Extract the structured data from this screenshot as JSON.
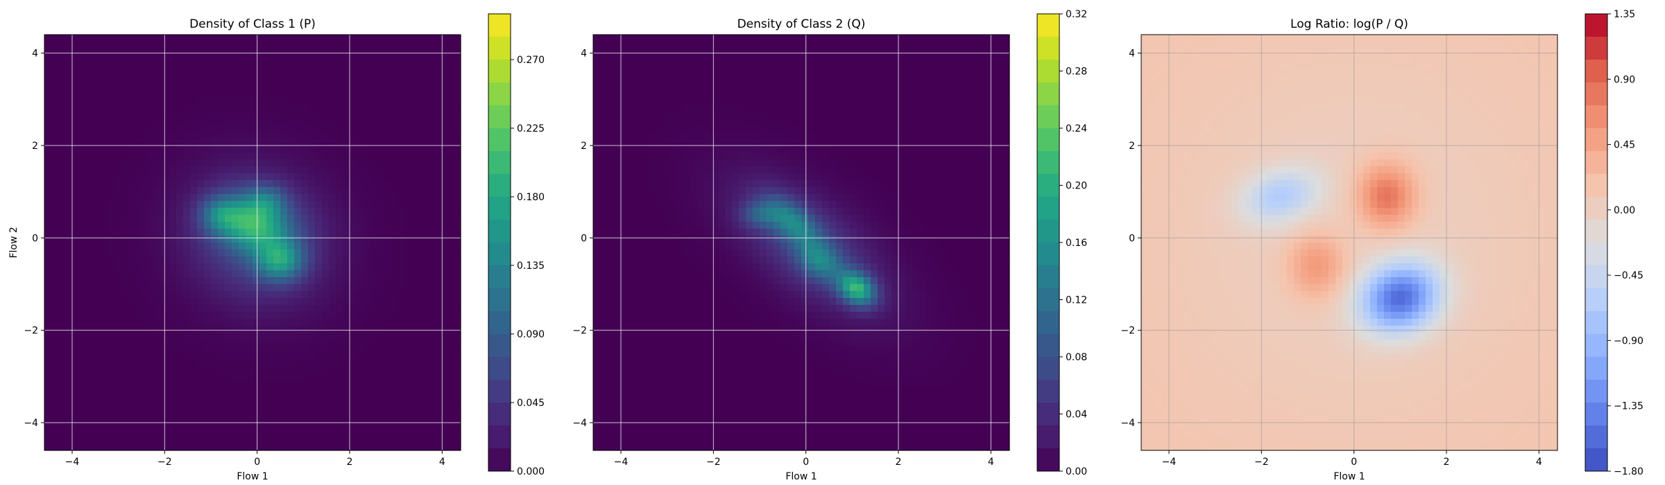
{
  "chart_data": [
    {
      "type": "heatmap",
      "title": "Density of Class 1 (P)",
      "xlabel": "Flow 1",
      "ylabel": "Flow 2",
      "xlim": [
        -4.6,
        4.4
      ],
      "ylim": [
        -4.6,
        4.4
      ],
      "xticks": [
        -4,
        -2,
        0,
        2,
        4
      ],
      "yticks": [
        -4,
        -2,
        0,
        2,
        4
      ],
      "grid": true,
      "colormap": "viridis",
      "colorbar": {
        "min": 0.0,
        "max": 0.3,
        "ticks": [
          "0.000",
          "0.045",
          "0.090",
          "0.135",
          "0.180",
          "0.225",
          "0.270"
        ]
      },
      "blobs": [
        {
          "x": 0.0,
          "y": 0.0,
          "sx": 1.05,
          "sy": 0.95,
          "rot": -0.55,
          "amp": 0.07
        },
        {
          "x": -0.1,
          "y": 0.3,
          "sx": 0.55,
          "sy": 0.4,
          "rot": -0.3,
          "amp": 0.14
        },
        {
          "x": 0.5,
          "y": -0.5,
          "sx": 0.35,
          "sy": 0.3,
          "rot": 0.0,
          "amp": 0.12
        },
        {
          "x": -0.8,
          "y": 0.5,
          "sx": 0.3,
          "sy": 0.25,
          "rot": 0.0,
          "amp": 0.07
        },
        {
          "x": 0.2,
          "y": 0.8,
          "sx": 0.3,
          "sy": 0.25,
          "rot": 0.0,
          "amp": 0.06
        }
      ]
    },
    {
      "type": "heatmap",
      "title": "Density of Class 2 (Q)",
      "xlabel": "Flow 1",
      "ylabel": "",
      "xlim": [
        -4.6,
        4.4
      ],
      "ylim": [
        -4.6,
        4.4
      ],
      "xticks": [
        -4,
        -2,
        0,
        2,
        4
      ],
      "yticks": [
        -4,
        -2,
        0,
        2,
        4
      ],
      "grid": true,
      "colormap": "viridis",
      "colorbar": {
        "min": 0.0,
        "max": 0.32,
        "ticks": [
          "0.00",
          "0.04",
          "0.08",
          "0.12",
          "0.16",
          "0.20",
          "0.24",
          "0.28",
          "0.32"
        ]
      },
      "blobs": [
        {
          "x": 0.1,
          "y": -0.2,
          "sx": 1.35,
          "sy": 0.65,
          "rot": -0.68,
          "amp": 0.065
        },
        {
          "x": -0.3,
          "y": 0.35,
          "sx": 0.5,
          "sy": 0.25,
          "rot": -0.7,
          "amp": 0.1
        },
        {
          "x": 1.1,
          "y": -1.1,
          "sx": 0.3,
          "sy": 0.22,
          "rot": -0.6,
          "amp": 0.18
        },
        {
          "x": 0.3,
          "y": -0.5,
          "sx": 0.35,
          "sy": 0.25,
          "rot": -0.6,
          "amp": 0.09
        },
        {
          "x": -1.0,
          "y": 0.5,
          "sx": 0.3,
          "sy": 0.2,
          "rot": 0.0,
          "amp": 0.06
        }
      ]
    },
    {
      "type": "heatmap",
      "title": "Log Ratio: log(P / Q)",
      "xlabel": "Flow 1",
      "ylabel": "",
      "xlim": [
        -4.6,
        4.4
      ],
      "ylim": [
        -4.6,
        4.4
      ],
      "xticks": [
        -4,
        -2,
        0,
        2,
        4
      ],
      "yticks": [
        -4,
        -2,
        0,
        2,
        4
      ],
      "grid": true,
      "colormap": "coolwarm",
      "colorbar": {
        "min": -1.8,
        "max": 1.35,
        "ticks": [
          "1.35",
          "0.90",
          "0.45",
          "0.00",
          "-0.45",
          "-0.90",
          "-1.35",
          "-1.80"
        ]
      },
      "background": 0.15,
      "blobs": [
        {
          "x": 0.7,
          "y": 0.9,
          "sx": 0.45,
          "sy": 0.5,
          "rot": 0.0,
          "amp": 0.8
        },
        {
          "x": -0.8,
          "y": -0.6,
          "sx": 0.45,
          "sy": 0.5,
          "rot": 0.0,
          "amp": 0.55
        },
        {
          "x": 1.0,
          "y": -1.3,
          "sx": 0.6,
          "sy": 0.5,
          "rot": 0.4,
          "amp": -1.6
        },
        {
          "x": -1.6,
          "y": 0.9,
          "sx": 0.6,
          "sy": 0.4,
          "rot": 0.3,
          "amp": -0.7
        },
        {
          "x": 0.0,
          "y": 0.0,
          "sx": 2.8,
          "sy": 2.8,
          "rot": 0.0,
          "amp": -0.15
        }
      ]
    }
  ]
}
